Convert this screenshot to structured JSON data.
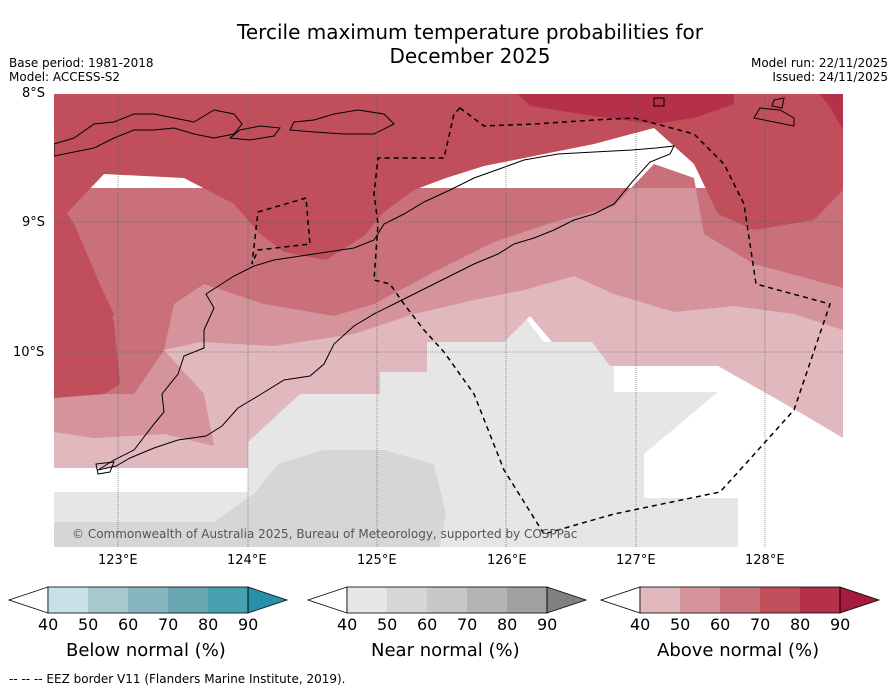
{
  "title_line1": "Tercile maximum temperature probabilities for",
  "title_line2": "December 2025",
  "meta_left": {
    "base_period": "Base period: 1981-2018",
    "model": "Model: ACCESS-S2"
  },
  "meta_right": {
    "model_run": "Model run: 22/11/2025",
    "issued": "Issued: 24/11/2025"
  },
  "map": {
    "lat_labels": [
      "8°S",
      "9°S",
      "10°S"
    ],
    "lon_labels": [
      "123°E",
      "124°E",
      "125°E",
      "126°E",
      "127°E",
      "128°E"
    ],
    "copyright": "© Commonwealth of Australia 2025, Bureau of Meteorology, supported by COSPPac",
    "colors": {
      "above_40": "#e0b8bd",
      "above_50": "#d5939b",
      "above_60": "#c9707a",
      "above_70": "#c04e5b",
      "above_80": "#b53049",
      "near_40": "#e6e6e6",
      "near_50": "#d6d6d6"
    }
  },
  "colorbars": {
    "ticks": [
      "40",
      "50",
      "60",
      "70",
      "80",
      "90"
    ],
    "below": {
      "label": "Below normal (%)",
      "colors": [
        "#c8e1e6",
        "#a6c9ce",
        "#88b6bf",
        "#68a6b1",
        "#46a0b0",
        "#2791a9"
      ]
    },
    "near": {
      "label": "Near normal (%)",
      "colors": [
        "#e6e6e6",
        "#d6d6d6",
        "#c8c8c8",
        "#b4b4b4",
        "#a0a0a0",
        "#808080"
      ]
    },
    "above": {
      "label": "Above normal (%)",
      "colors": [
        "#e0b8bd",
        "#d5939b",
        "#c9707a",
        "#c04e5b",
        "#b53049",
        "#a61b3b"
      ]
    }
  },
  "footer": "--  --  -- EEZ border V11 (Flanders Marine Institute, 2019)."
}
